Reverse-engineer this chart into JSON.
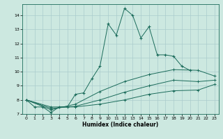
{
  "title": "",
  "xlabel": "Humidex (Indice chaleur)",
  "bg_color": "#cce8e0",
  "grid_color": "#aacccc",
  "line_color": "#1a6b5a",
  "xlim": [
    -0.5,
    23.5
  ],
  "ylim": [
    7.0,
    14.8
  ],
  "xticks": [
    0,
    1,
    2,
    3,
    4,
    5,
    6,
    7,
    8,
    9,
    10,
    11,
    12,
    13,
    14,
    15,
    16,
    17,
    18,
    19,
    20,
    21,
    22,
    23
  ],
  "yticks": [
    7,
    8,
    9,
    10,
    11,
    12,
    13,
    14
  ],
  "series": [
    {
      "x": [
        0,
        1,
        2,
        3,
        4,
        5,
        6,
        7,
        8,
        9,
        10,
        11,
        12,
        13,
        14,
        15,
        16,
        17,
        18,
        19,
        20
      ],
      "y": [
        8.0,
        7.5,
        7.5,
        7.1,
        7.5,
        7.5,
        8.4,
        8.5,
        9.5,
        10.4,
        13.4,
        12.6,
        14.5,
        14.0,
        12.4,
        13.2,
        11.2,
        11.2,
        11.1,
        10.4,
        10.1
      ]
    },
    {
      "x": [
        0,
        3,
        6,
        9,
        12,
        15,
        18,
        21,
        23
      ],
      "y": [
        8.0,
        7.3,
        7.7,
        8.6,
        9.3,
        9.8,
        10.15,
        10.1,
        9.7
      ]
    },
    {
      "x": [
        0,
        3,
        6,
        9,
        12,
        15,
        18,
        21,
        23
      ],
      "y": [
        8.0,
        7.4,
        7.55,
        8.0,
        8.55,
        9.0,
        9.4,
        9.3,
        9.4
      ]
    },
    {
      "x": [
        0,
        3,
        6,
        9,
        12,
        15,
        18,
        21,
        23
      ],
      "y": [
        8.0,
        7.5,
        7.5,
        7.7,
        8.0,
        8.4,
        8.65,
        8.7,
        9.1
      ]
    }
  ]
}
